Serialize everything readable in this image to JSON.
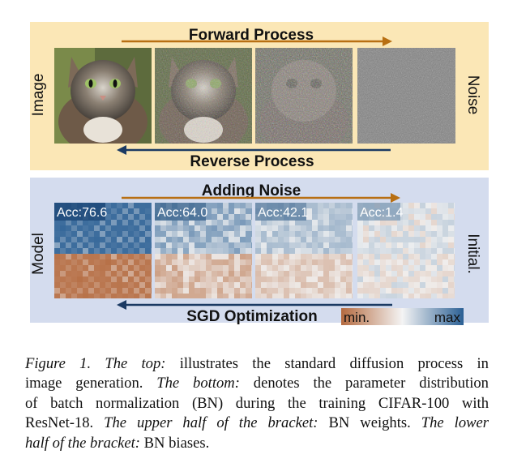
{
  "figure": {
    "top_panel": {
      "title": "Forward Process",
      "bottom_title": "Reverse Process",
      "left_label": "Image",
      "right_label": "Noise",
      "colors": {
        "panel_bg": "#fbe7b6",
        "forward_arrow": "#b86f12",
        "reverse_arrow": "#1b3a63"
      }
    },
    "bottom_panel": {
      "title": "Adding Noise",
      "bottom_title": "SGD Optimization",
      "left_label": "Model",
      "right_label": "Initial.",
      "accuracies": [
        "Acc:76.6",
        "Acc:64.0",
        "Acc:42.1",
        "Acc:1.4"
      ],
      "colorbar": {
        "min_label": "min.",
        "max_label": "max"
      },
      "colors": {
        "panel_bg": "#d4dcee",
        "high": "#2a5f94",
        "low": "#b46a3f",
        "mid": "#f2f2f2"
      }
    }
  },
  "caption": {
    "label": "Figure 1.",
    "part1_title": "The top:",
    "part1_text": "illustrates the standard diffusion process in image generation.",
    "part2_title": "The bottom:",
    "part2_text": "denotes the parameter distribution of batch normalization (BN) during the training CIFAR-100 with ResNet-18.",
    "part3_title": "The upper half of the bracket:",
    "part3_text": "BN weights.",
    "part4_title": "The lower half of the bracket:",
    "part4_text": "BN biases."
  }
}
